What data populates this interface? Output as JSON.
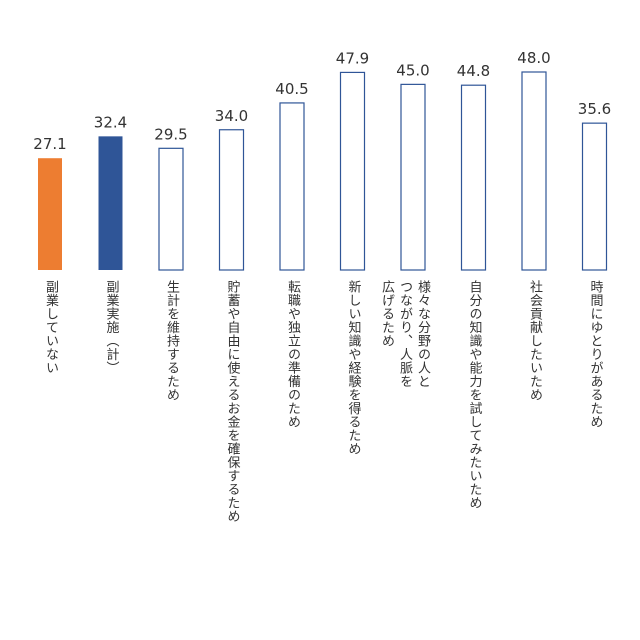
{
  "chart_data": {
    "type": "bar",
    "title": "",
    "xlabel": "",
    "ylabel": "",
    "categories": [
      "副業していない",
      "副業実施（計）",
      "生計を維持するため",
      "貯蓄や自由に使えるお金を確保するため",
      "転職や独立の準備のため",
      "新しい知識や経験を得るため",
      "様々な分野の人とつながり、人脈を広げるため",
      "自分の知識や能力を試してみたいため",
      "社会貢献したいため",
      "時間にゆとりがあるため"
    ],
    "values": [
      27.1,
      32.4,
      29.5,
      34.0,
      40.5,
      47.9,
      45.0,
      44.8,
      48.0,
      35.6
    ],
    "value_labels": [
      "27.1",
      "32.4",
      "29.5",
      "34.0",
      "40.5",
      "47.9",
      "45.0",
      "44.8",
      "48.0",
      "35.6"
    ],
    "styles": [
      "filled-orange",
      "filled-blue",
      "outline",
      "outline",
      "outline",
      "outline",
      "outline",
      "outline",
      "outline",
      "outline"
    ],
    "colors": {
      "orange": "#ED7D31",
      "blue": "#2F5597",
      "outline": "#2F5597"
    },
    "ylim": [
      0,
      48
    ],
    "grid": false,
    "legend": "none"
  }
}
